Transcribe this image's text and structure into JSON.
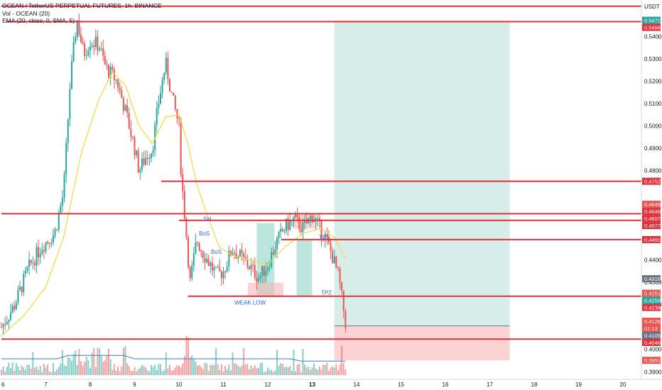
{
  "legend": {
    "title": "OCEAN / TetherUS PERPETUAL FUTURES, 1h, BINANCE",
    "vol": "Vol - OCEAN (20)",
    "ema": "EMA (20, close, 0, SMA, 5)"
  },
  "colors": {
    "up": "#26a69a",
    "down": "#ef5350",
    "level": "#e0303a",
    "ema": "#f5d94a",
    "volume_ma": "#3a7bd5",
    "target_zone": "#d6ede9",
    "stop_zone": "#fbd3d3",
    "annotation": "#2962ff"
  },
  "chart_data": {
    "type": "candlestick",
    "title": "OCEAN / TetherUS PERPETUAL FUTURES, 1h, BINANCE",
    "y_unit": "USDT",
    "y_range": [
      0.3885,
      0.555
    ],
    "y_ticks": [
      "0.5400",
      "0.5300",
      "0.5200",
      "0.5100",
      "0.5000",
      "0.4900",
      "0.4800",
      "0.4400",
      "0.4300",
      "0.4200",
      "0.4000",
      "0.3900"
    ],
    "x_ticks": [
      {
        "label": "6",
        "day": 6
      },
      {
        "label": "7",
        "day": 7
      },
      {
        "label": "8",
        "day": 8
      },
      {
        "label": "9",
        "day": 9
      },
      {
        "label": "10",
        "day": 10
      },
      {
        "label": "11",
        "day": 11
      },
      {
        "label": "12",
        "day": 12
      },
      {
        "label": "13",
        "day": 13
      },
      {
        "label": "14",
        "day": 14
      },
      {
        "label": "15",
        "day": 15
      },
      {
        "label": "16",
        "day": 16
      },
      {
        "label": "17",
        "day": 17
      },
      {
        "label": "18",
        "day": 18
      },
      {
        "label": "19",
        "day": 19
      },
      {
        "label": "20",
        "day": 20
      }
    ],
    "close_path": [
      [
        6.0,
        0.41
      ],
      [
        6.3,
        0.42
      ],
      [
        6.6,
        0.436
      ],
      [
        6.9,
        0.446
      ],
      [
        7.2,
        0.452
      ],
      [
        7.4,
        0.47
      ],
      [
        7.55,
        0.52
      ],
      [
        7.7,
        0.548
      ],
      [
        7.85,
        0.532
      ],
      [
        8.0,
        0.538
      ],
      [
        8.2,
        0.536
      ],
      [
        8.35,
        0.526
      ],
      [
        8.6,
        0.52
      ],
      [
        8.8,
        0.506
      ],
      [
        9.0,
        0.49
      ],
      [
        9.1,
        0.48
      ],
      [
        9.25,
        0.486
      ],
      [
        9.4,
        0.49
      ],
      [
        9.55,
        0.512
      ],
      [
        9.7,
        0.528
      ],
      [
        9.85,
        0.512
      ],
      [
        10.0,
        0.5
      ],
      [
        10.05,
        0.478
      ],
      [
        10.15,
        0.455
      ],
      [
        10.25,
        0.43
      ],
      [
        10.4,
        0.449
      ],
      [
        10.55,
        0.443
      ],
      [
        10.7,
        0.438
      ],
      [
        10.85,
        0.433
      ],
      [
        11.0,
        0.435
      ],
      [
        11.2,
        0.445
      ],
      [
        11.4,
        0.441
      ],
      [
        11.6,
        0.437
      ],
      [
        11.8,
        0.432
      ],
      [
        12.0,
        0.438
      ],
      [
        12.2,
        0.448
      ],
      [
        12.4,
        0.455
      ],
      [
        12.6,
        0.458
      ],
      [
        12.8,
        0.454
      ],
      [
        13.0,
        0.46
      ],
      [
        13.15,
        0.455
      ],
      [
        13.3,
        0.45
      ],
      [
        13.45,
        0.442
      ],
      [
        13.6,
        0.432
      ],
      [
        13.75,
        0.412
      ]
    ],
    "ema20_path": [
      [
        6.0,
        0.406
      ],
      [
        6.5,
        0.415
      ],
      [
        7.0,
        0.428
      ],
      [
        7.4,
        0.45
      ],
      [
        7.8,
        0.488
      ],
      [
        8.2,
        0.512
      ],
      [
        8.5,
        0.524
      ],
      [
        8.8,
        0.518
      ],
      [
        9.1,
        0.5
      ],
      [
        9.4,
        0.492
      ],
      [
        9.7,
        0.504
      ],
      [
        10.0,
        0.505
      ],
      [
        10.2,
        0.492
      ],
      [
        10.4,
        0.474
      ],
      [
        10.6,
        0.462
      ],
      [
        10.9,
        0.446
      ],
      [
        11.2,
        0.442
      ],
      [
        11.6,
        0.44
      ],
      [
        12.0,
        0.438
      ],
      [
        12.4,
        0.446
      ],
      [
        12.8,
        0.452
      ],
      [
        13.2,
        0.454
      ],
      [
        13.5,
        0.45
      ],
      [
        13.75,
        0.441
      ]
    ],
    "horizontal_levels": [
      {
        "value": 0.5535,
        "x_start": 6.0
      },
      {
        "value": 0.5466,
        "x_start": 6.1
      },
      {
        "value": 0.4752,
        "x_start": 9.6
      },
      {
        "value": 0.4607,
        "x_start": 6.0
      },
      {
        "value": 0.4577,
        "x_start": 10.0
      },
      {
        "value": 0.4491,
        "x_start": 12.3
      },
      {
        "value": 0.4238,
        "x_start": 10.2
      },
      {
        "value": 0.4046,
        "x_start": 6.0
      }
    ],
    "long_position": {
      "x_start": 13.5,
      "x_end": 17.45,
      "entry": 0.4105,
      "target": 0.5466,
      "stop": 0.3951
    },
    "order_block_zones": [
      {
        "x_start": 11.75,
        "x_end": 12.15,
        "y_low": 0.4235,
        "y_high": 0.4565,
        "kind": "up"
      },
      {
        "x_start": 11.55,
        "x_end": 12.35,
        "y_low": 0.4235,
        "y_high": 0.4298,
        "kind": "down"
      },
      {
        "x_start": 12.65,
        "x_end": 13.0,
        "y_low": 0.4238,
        "y_high": 0.4492,
        "kind": "up"
      },
      {
        "x_start": 12.55,
        "x_end": 13.1,
        "y_low": 0.454,
        "y_high": 0.4607,
        "kind": "down"
      }
    ],
    "annotations": [
      {
        "text": "WEAK LOW",
        "x": 11.25,
        "y": 0.42
      },
      {
        "text": "TP2",
        "x": 13.2,
        "y": 0.4245
      },
      {
        "text": "TP1",
        "x": 13.15,
        "y": 0.4493
      },
      {
        "text": "BoS",
        "x": 10.45,
        "y": 0.451
      },
      {
        "text": "BoS",
        "x": 10.72,
        "y": 0.4428
      },
      {
        "text": "SH",
        "x": 10.55,
        "y": 0.4575
      }
    ],
    "price_tags": [
      {
        "label": "0.5472",
        "value": 0.5472,
        "color": "#26a69a"
      },
      {
        "label": "0.5466",
        "value": 0.5466,
        "color": "#e0303a"
      },
      {
        "label": "0.4752",
        "value": 0.4752,
        "color": "#e0303a"
      },
      {
        "label": "0.4649",
        "value": 0.4649,
        "color": "#ef5350"
      },
      {
        "label": "0.4648",
        "value": 0.4648,
        "color": "#e0303a"
      },
      {
        "label": "0.4607",
        "value": 0.4607,
        "color": "#e0303a"
      },
      {
        "label": "0.4577",
        "value": 0.4577,
        "color": "#e0303a"
      },
      {
        "label": "0.4491",
        "value": 0.4491,
        "color": "#e0303a"
      },
      {
        "label": "0.4316",
        "value": 0.4316,
        "color": "#6d727f"
      },
      {
        "label": "0.4251",
        "value": 0.4251,
        "color": "#ef5350"
      },
      {
        "label": "0.4250",
        "value": 0.425,
        "color": "#26a69a"
      },
      {
        "label": "0.4238",
        "value": 0.4238,
        "color": "#e0303a"
      },
      {
        "label": "0.4126",
        "value": 0.4126,
        "color": "#ef5350"
      },
      {
        "label": "01:13",
        "value": 0.4095,
        "color": "#ef5350"
      },
      {
        "label": "0.4105",
        "value": 0.4105,
        "color": "#6d727f"
      },
      {
        "label": "0.4046",
        "value": 0.4046,
        "color": "#e0303a"
      },
      {
        "label": "0.3951",
        "value": 0.3951,
        "color": "#ef5350"
      }
    ]
  }
}
